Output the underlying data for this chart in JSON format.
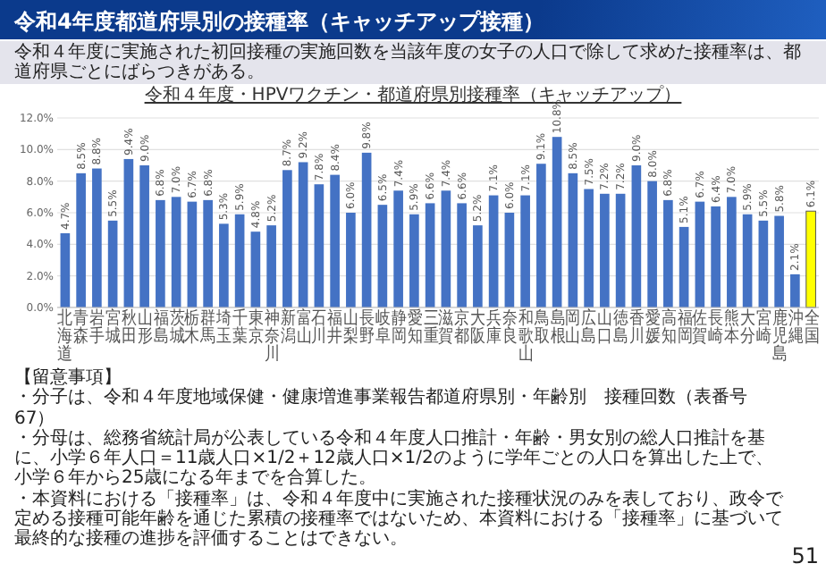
{
  "chart_data": {
    "type": "bar",
    "title": "令和4年度都道府県別の接種率（キャッチアップ接種）",
    "subtitle": "令和４年度・HPVワクチン・都道府県別接種率（キャッチアップ）",
    "categories": [
      "北海道",
      "青森",
      "岩手",
      "宮城",
      "秋田",
      "山形",
      "福島",
      "茨城",
      "栃木",
      "群馬",
      "埼玉",
      "千葉",
      "東京",
      "神奈川",
      "新潟",
      "富山",
      "石川",
      "福井",
      "山梨",
      "長野",
      "岐阜",
      "静岡",
      "愛知",
      "三重",
      "滋賀",
      "京都",
      "大阪",
      "兵庫",
      "奈良",
      "和歌山",
      "鳥取",
      "島根",
      "岡山",
      "広島",
      "山口",
      "徳島",
      "香川",
      "愛媛",
      "高知",
      "福岡",
      "佐賀",
      "長崎",
      "熊本",
      "大分",
      "宮崎",
      "鹿児島",
      "沖縄",
      "全国"
    ],
    "values": [
      4.7,
      8.5,
      8.8,
      5.5,
      9.4,
      9.0,
      6.8,
      7.0,
      6.7,
      6.8,
      5.3,
      5.9,
      4.8,
      5.2,
      8.7,
      9.2,
      7.8,
      8.4,
      6.0,
      9.8,
      6.5,
      7.4,
      5.9,
      6.6,
      7.4,
      6.6,
      5.2,
      7.1,
      6.0,
      7.1,
      9.1,
      10.8,
      8.5,
      7.5,
      7.2,
      7.2,
      9.0,
      8.0,
      6.8,
      5.1,
      6.7,
      6.4,
      7.0,
      5.9,
      5.5,
      5.8,
      2.1,
      6.1
    ],
    "value_labels": [
      "4.7%",
      "8.5%",
      "8.8%",
      "5.5%",
      "9.4%",
      "9.0%",
      "6.8%",
      "7.0%",
      "6.7%",
      "6.8%",
      "5.3%",
      "5.9%",
      "4.8%",
      "5.2%",
      "8.7%",
      "9.2%",
      "7.8%",
      "8.4%",
      "6.0%",
      "9.8%",
      "6.5%",
      "7.4%",
      "5.9%",
      "6.6%",
      "7.4%",
      "6.6%",
      "5.2%",
      "7.1%",
      "6.0%",
      "7.1%",
      "9.1%",
      "10.8%",
      "8.5%",
      "7.5%",
      "7.2%",
      "7.2%",
      "9.0%",
      "8.0%",
      "6.8%",
      "5.1%",
      "6.7%",
      "6.4%",
      "7.0%",
      "5.9%",
      "5.5%",
      "5.8%",
      "2.1%",
      "6.1%"
    ],
    "colors": [
      "#4472c4",
      "#4472c4",
      "#4472c4",
      "#4472c4",
      "#4472c4",
      "#4472c4",
      "#4472c4",
      "#4472c4",
      "#4472c4",
      "#4472c4",
      "#4472c4",
      "#4472c4",
      "#4472c4",
      "#4472c4",
      "#4472c4",
      "#4472c4",
      "#4472c4",
      "#4472c4",
      "#4472c4",
      "#4472c4",
      "#4472c4",
      "#4472c4",
      "#4472c4",
      "#4472c4",
      "#4472c4",
      "#4472c4",
      "#4472c4",
      "#4472c4",
      "#4472c4",
      "#4472c4",
      "#4472c4",
      "#4472c4",
      "#4472c4",
      "#4472c4",
      "#4472c4",
      "#4472c4",
      "#4472c4",
      "#4472c4",
      "#4472c4",
      "#4472c4",
      "#4472c4",
      "#4472c4",
      "#4472c4",
      "#4472c4",
      "#4472c4",
      "#4472c4",
      "#4472c4",
      "#ffff00"
    ],
    "ylim": [
      0,
      12
    ],
    "yticks": [
      {
        "value": 0,
        "label": "0.0%"
      },
      {
        "value": 2,
        "label": "2.0%"
      },
      {
        "value": 4,
        "label": "4.0%"
      },
      {
        "value": 6,
        "label": "6.0%"
      },
      {
        "value": 8,
        "label": "8.0%"
      },
      {
        "value": 10,
        "label": "10.0%"
      },
      {
        "value": 12,
        "label": "12.0%"
      }
    ],
    "grid": "y",
    "annotations": [
      "令和４年度に実施された初回接種の実施回数を当該年度の女子の人口で除して求めた接種率は、都道府県ごとにばらつきがある。",
      "【留意事項】",
      "・分子は、令和４年度地域保健・健康増進事業報告都道府県別・年齢別　接種回数（表番号67）",
      "・分母は、総務省統計局が公表している令和４年度人口推計・年齢・男女別の総人口推計を基に、小学６年人口＝11歳人口×1/2＋12歳人口×1/2のように学年ごとの人口を算出した上で、小学６年から25歳になる年までを合算した。",
      "・本資料における「接種率」は、令和４年度中に実施された接種状況のみを表しており、政令で定める接種可能年齢を通じた累積の接種率ではないため、本資料における「接種率」に基づいて最終的な接種の進捗を評価することはできない。",
      "51"
    ]
  }
}
